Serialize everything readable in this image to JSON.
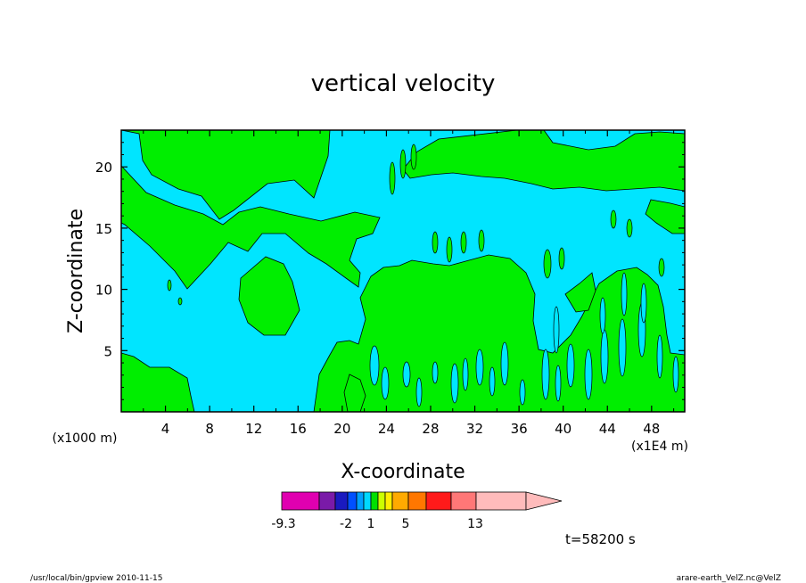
{
  "chart_data": {
    "type": "heatmap",
    "title": "vertical velocity",
    "xlabel": "X-coordinate",
    "ylabel": "Z-coordinate",
    "x_units_label": "(x1000 m)",
    "x_scale_label": "(x1E4 m)",
    "xlim": [
      0,
      51
    ],
    "ylim": [
      0,
      23
    ],
    "xticks": [
      "4",
      "8",
      "12",
      "16",
      "20",
      "24",
      "28",
      "32",
      "36",
      "40",
      "44",
      "48"
    ],
    "yticks": [
      "5",
      "10",
      "15",
      "20"
    ],
    "time_label": "t=58200 s",
    "colorbar": {
      "colors": [
        "#e000b0",
        "#7a1aa8",
        "#1a1ac0",
        "#0050ff",
        "#00a0ff",
        "#00d8ff",
        "#00e000",
        "#ccff00",
        "#ffee00",
        "#ffaa00",
        "#ff7700",
        "#ff1a1a",
        "#ff7777",
        "#ffbbbb"
      ],
      "tick_labels": [
        "-9.3",
        "-2",
        "1",
        "5",
        "13"
      ]
    },
    "region_colors": {
      "background": "#00e5ff",
      "contour_fill": "#00ee00"
    }
  },
  "footer": {
    "left": "/usr/local/bin/gpview  2010-11-15",
    "right": "arare-earth_VelZ.nc@VelZ"
  }
}
